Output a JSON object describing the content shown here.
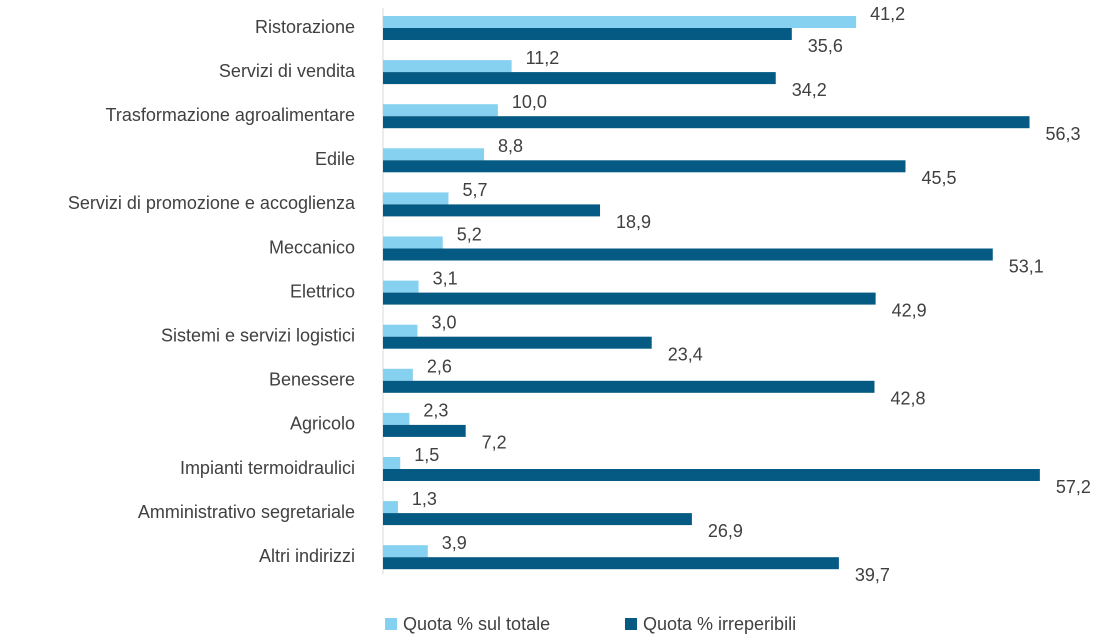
{
  "chart_data": {
    "type": "hbar",
    "categories": [
      "Ristorazione",
      "Servizi di vendita",
      "Trasformazione agroalimentare",
      "Edile",
      "Servizi di promozione e accoglienza",
      "Meccanico",
      "Elettrico",
      "Sistemi e servizi logistici",
      "Benessere",
      "Agricolo",
      "Impianti termoidraulici",
      "Amministrativo segretariale",
      "Altri indirizzi"
    ],
    "series": [
      {
        "name": "Quota % sul totale",
        "color": "#86d0f0",
        "values": [
          41.2,
          11.2,
          10.0,
          8.8,
          5.7,
          5.2,
          3.1,
          3.0,
          2.6,
          2.3,
          1.5,
          1.3,
          3.9
        ],
        "value_labels": [
          "41,2",
          "11,2",
          "10,0",
          "8,8",
          "5,7",
          "5,2",
          "3,1",
          "3,0",
          "2,6",
          "2,3",
          "1,5",
          "1,3",
          "3,9"
        ]
      },
      {
        "name": "Quota % irreperibili",
        "color": "#045a82",
        "values": [
          35.6,
          34.2,
          56.3,
          45.5,
          18.9,
          53.1,
          42.9,
          23.4,
          42.8,
          7.2,
          57.2,
          26.9,
          39.7
        ],
        "value_labels": [
          "35,6",
          "34,2",
          "56,3",
          "45,5",
          "18,9",
          "53,1",
          "42,9",
          "23,4",
          "42,8",
          "7,2",
          "57,2",
          "26,9",
          "39,7"
        ]
      }
    ],
    "xlim": [
      0,
      60
    ],
    "legend": "bottom"
  }
}
